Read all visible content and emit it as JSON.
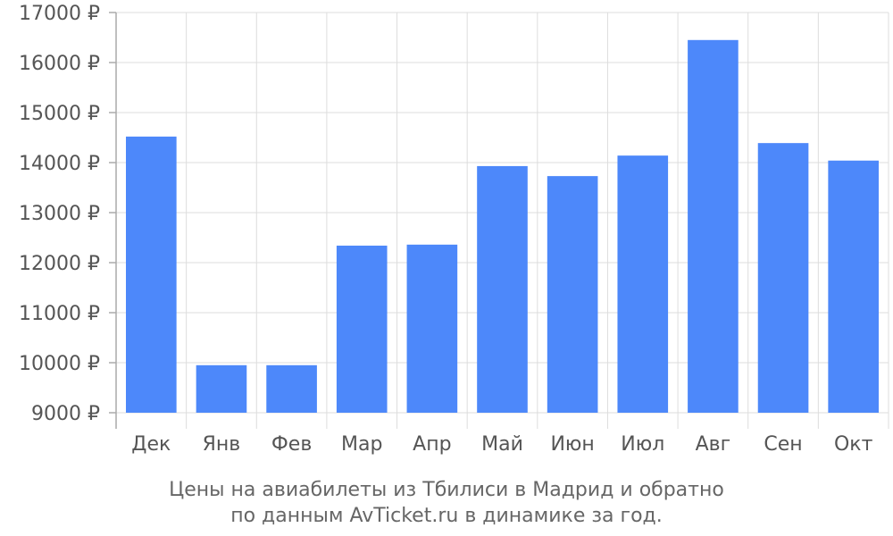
{
  "chart_data": {
    "type": "bar",
    "categories": [
      "Дек",
      "Янв",
      "Фев",
      "Мар",
      "Апр",
      "Май",
      "Июн",
      "Июл",
      "Авг",
      "Сен",
      "Окт"
    ],
    "values": [
      14520,
      9950,
      9950,
      12340,
      12360,
      13930,
      13730,
      14140,
      16450,
      14390,
      14040
    ],
    "ylim": [
      9000,
      17000
    ],
    "yticks": [
      9000,
      10000,
      11000,
      12000,
      13000,
      14000,
      15000,
      16000,
      17000
    ],
    "ytick_labels": [
      "9000 ₽",
      "10000 ₽",
      "11000 ₽",
      "12000 ₽",
      "13000 ₽",
      "14000 ₽",
      "15000 ₽",
      "16000 ₽",
      "17000 ₽"
    ],
    "grid": true,
    "bar_color": "#4d88fa",
    "caption_line1": "Цены на авиабилеты из Тбилиси в Мадрид и обратно",
    "caption_line2": "по данным AvTicket.ru в динамике за год."
  }
}
